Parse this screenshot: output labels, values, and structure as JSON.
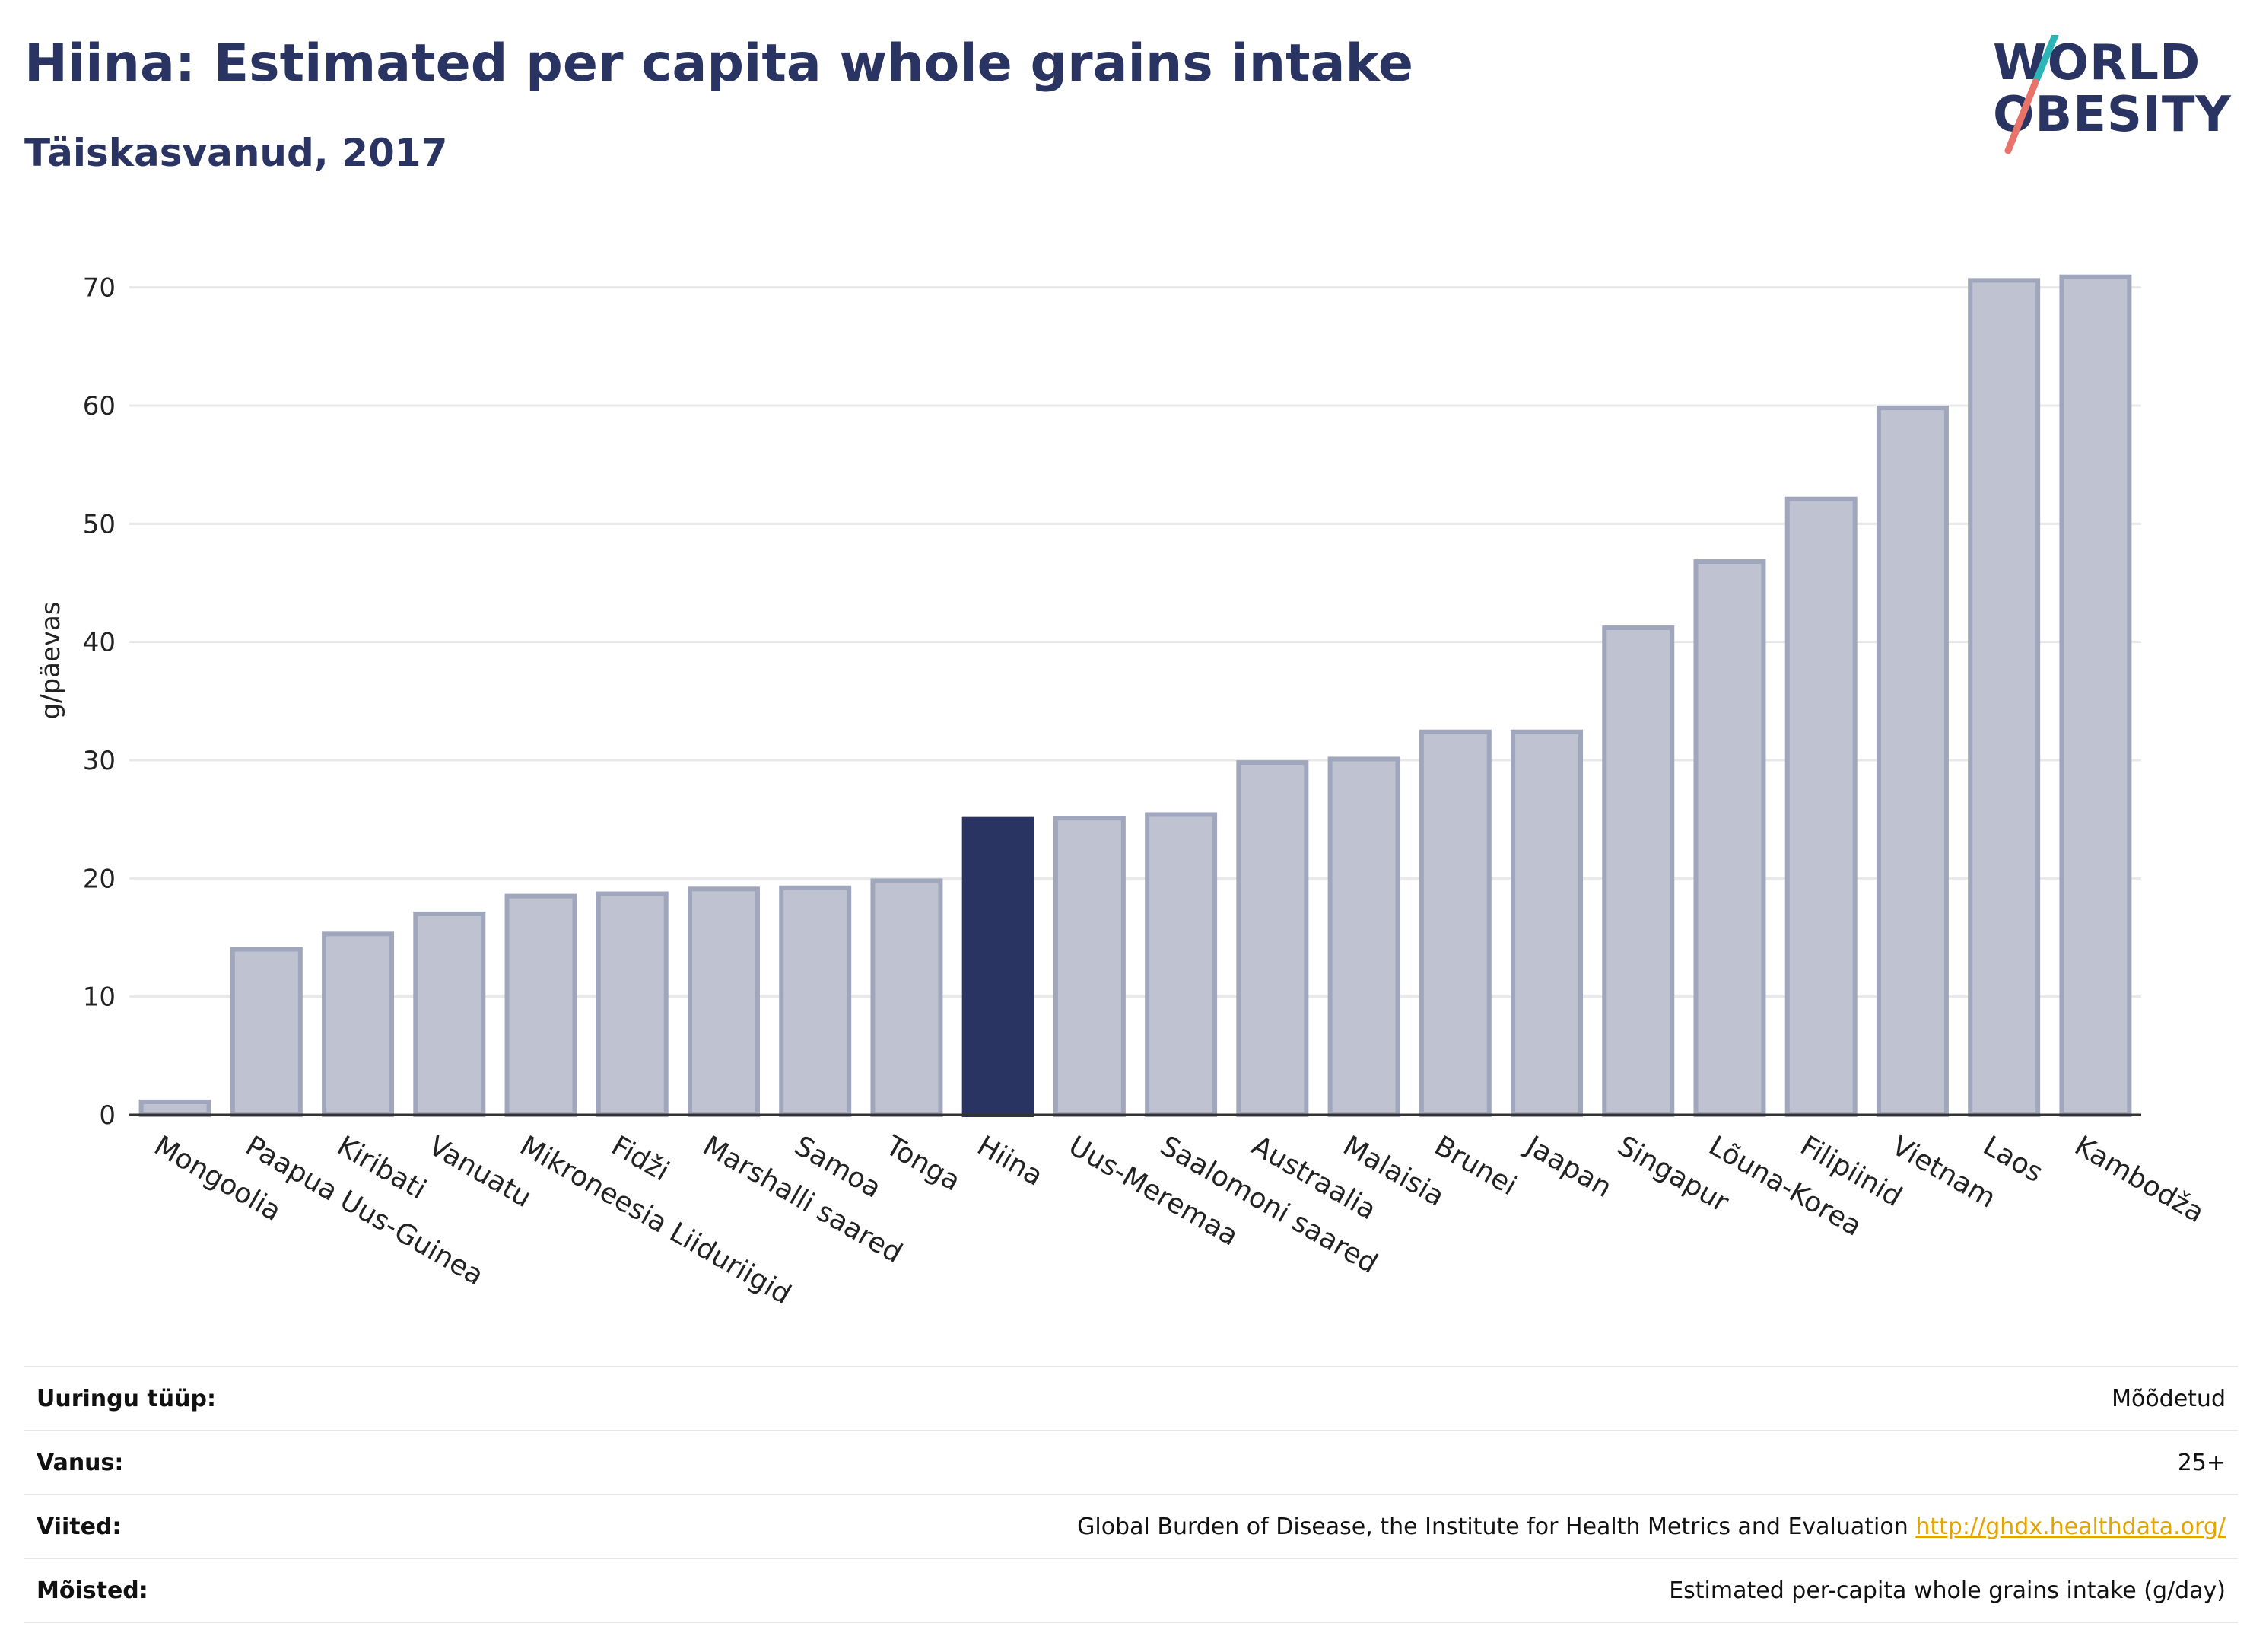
{
  "header": {
    "title": "Hiina: Estimated per capita whole grains intake",
    "subtitle": "Täiskasvanud, 2017"
  },
  "logo": {
    "line1": "WORLD",
    "line2": "OBESITY",
    "colors": {
      "text": "#2a3462",
      "slash_top": "#2bb5b8",
      "slash_bottom": "#e8736a"
    }
  },
  "chart_data": {
    "type": "bar",
    "title": "Hiina: Estimated per capita whole grains intake",
    "subtitle": "Täiskasvanud, 2017",
    "ylabel": "g/päevas",
    "xlabel": "",
    "ylim": [
      0,
      75
    ],
    "yticks": [
      0,
      10,
      20,
      30,
      40,
      50,
      60,
      70
    ],
    "grid": true,
    "highlight": "Hiina",
    "colors": {
      "bar": "#bfc2d0",
      "bar_edge": "#a0a6bc",
      "highlight": "#2a3462",
      "grid": "#e8e8e8",
      "axis": "#333333"
    },
    "categories": [
      "Mongoolia",
      "Paapua Uus-Guinea",
      "Kiribati",
      "Vanuatu",
      "Mikroneesia Liiduriigid",
      "Fidži",
      "Marshalli saared",
      "Samoa",
      "Tonga",
      "Hiina",
      "Uus-Meremaa",
      "Saalomoni saared",
      "Austraalia",
      "Malaisia",
      "Brunei",
      "Jaapan",
      "Singapur",
      "Lõuna-Korea",
      "Filipiinid",
      "Vietnam",
      "Laos",
      "Kambodža"
    ],
    "values": [
      1.1,
      14.0,
      15.3,
      17.0,
      18.5,
      18.7,
      19.1,
      19.2,
      19.8,
      25.0,
      25.1,
      25.4,
      29.8,
      30.1,
      32.4,
      32.4,
      41.2,
      46.8,
      52.1,
      59.8,
      70.6,
      70.9
    ]
  },
  "info_table": [
    {
      "label": "Uuringu tüüp:",
      "value": "Mõõdetud"
    },
    {
      "label": "Vanus:",
      "value": "25+"
    },
    {
      "label": "Viited:",
      "value": "Global Burden of Disease, the Institute for Health Metrics and Evaluation",
      "link": "http://ghdx.healthdata.org/"
    },
    {
      "label": "Mõisted:",
      "value": "Estimated per-capita whole grains intake (g/day)"
    }
  ]
}
